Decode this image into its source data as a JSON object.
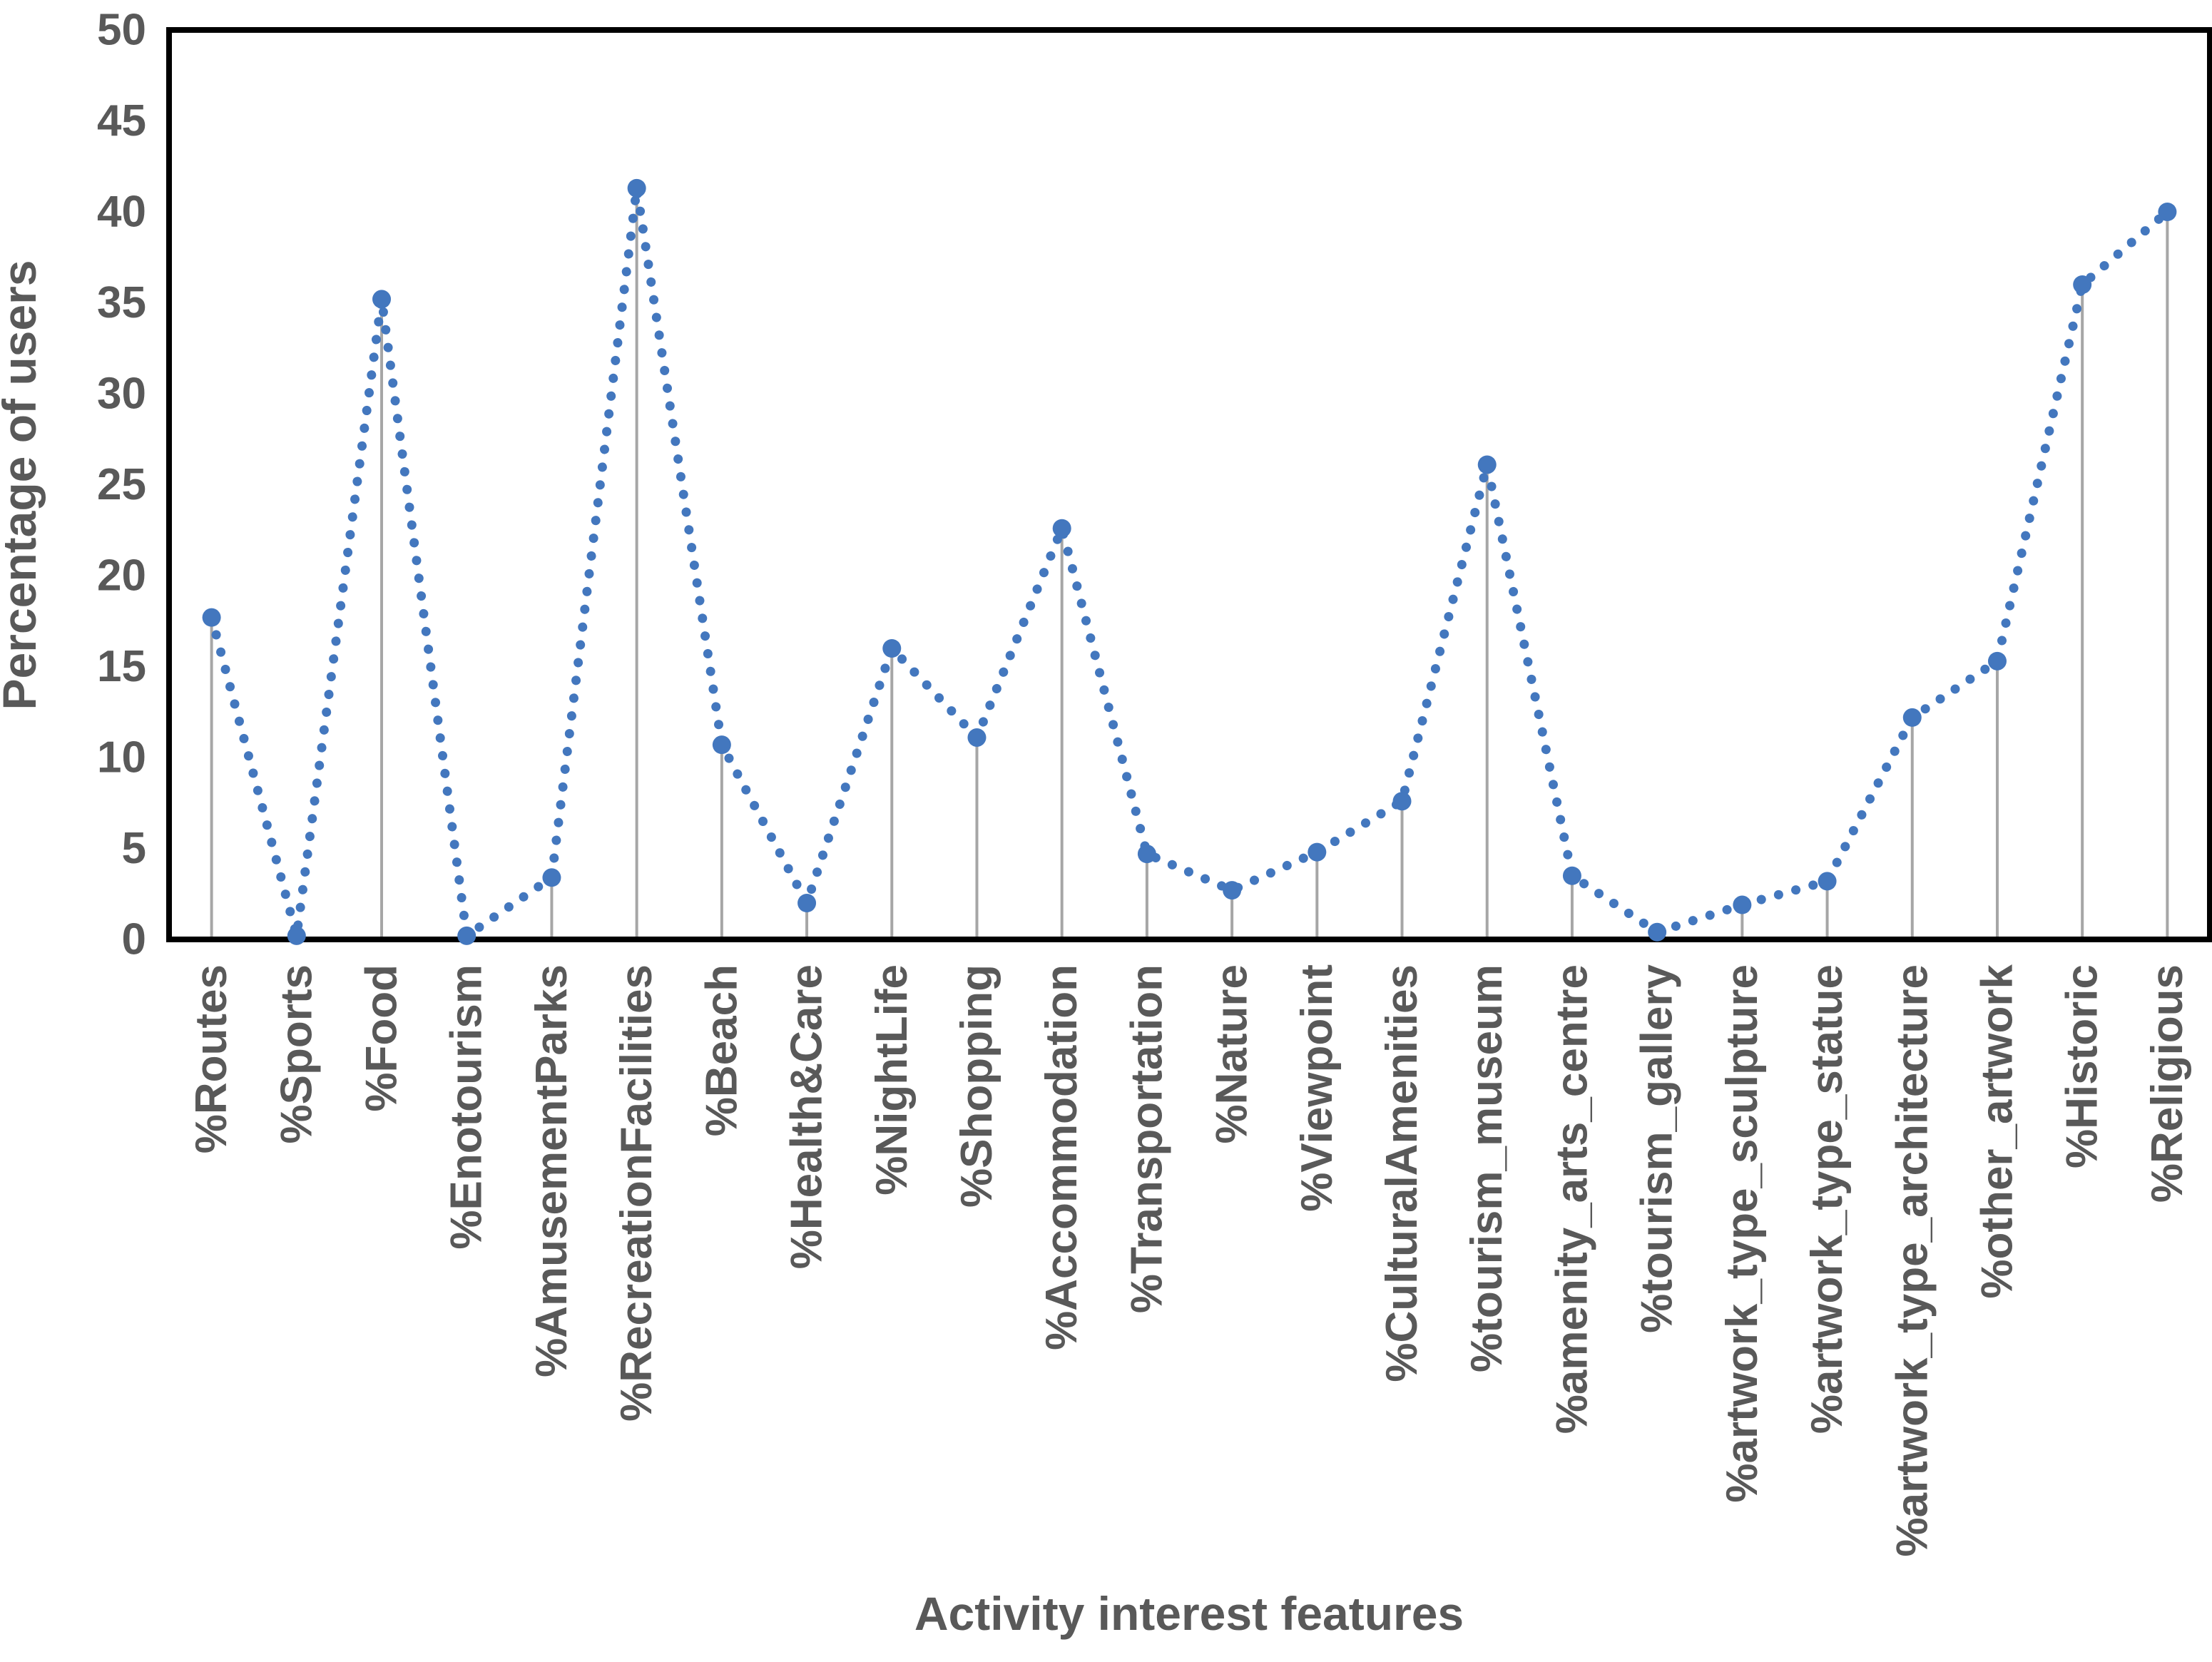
{
  "chart_data": {
    "type": "line",
    "title": "",
    "xlabel": "Activity interest features",
    "ylabel": "Percentage of users",
    "categories": [
      "%Routes",
      "%Sports",
      "%Food",
      "%Enotourism",
      "%AmusementParks",
      "%RecreationFacilities",
      "%Beach",
      "%Health&Care",
      "%NightLife",
      "%Shopping",
      "%Accommodation",
      "%Transportation",
      "%Nature",
      "%Viewpoint",
      "%CulturalAmenities",
      "%tourism_museum",
      "%amenity_arts_centre",
      "%tourism_gallery",
      "%artwork_type_sculpture",
      "%artwork_type_statue",
      "%artwork_type_architecture",
      "%other_artwork",
      "%Historic",
      "%Religious"
    ],
    "values": [
      17.7,
      0.2,
      35.2,
      0.2,
      3.4,
      41.3,
      10.7,
      2.0,
      16.0,
      11.1,
      22.6,
      4.7,
      2.7,
      4.8,
      7.6,
      26.1,
      3.5,
      0.4,
      1.9,
      3.2,
      12.2,
      15.3,
      36.0,
      40.0
    ],
    "ylim": [
      0,
      50
    ],
    "yticks": [
      0,
      5,
      10,
      15,
      20,
      25,
      30,
      35,
      40,
      45,
      50
    ],
    "grid": false,
    "legend_position": "none",
    "line_style": "dotted",
    "marker_style": "circle",
    "drop_lines": true,
    "colors": {
      "series": "#4377BE",
      "drop_line": "#A6A6A6",
      "axis_text": "#595959",
      "plot_border": "#000000"
    }
  }
}
